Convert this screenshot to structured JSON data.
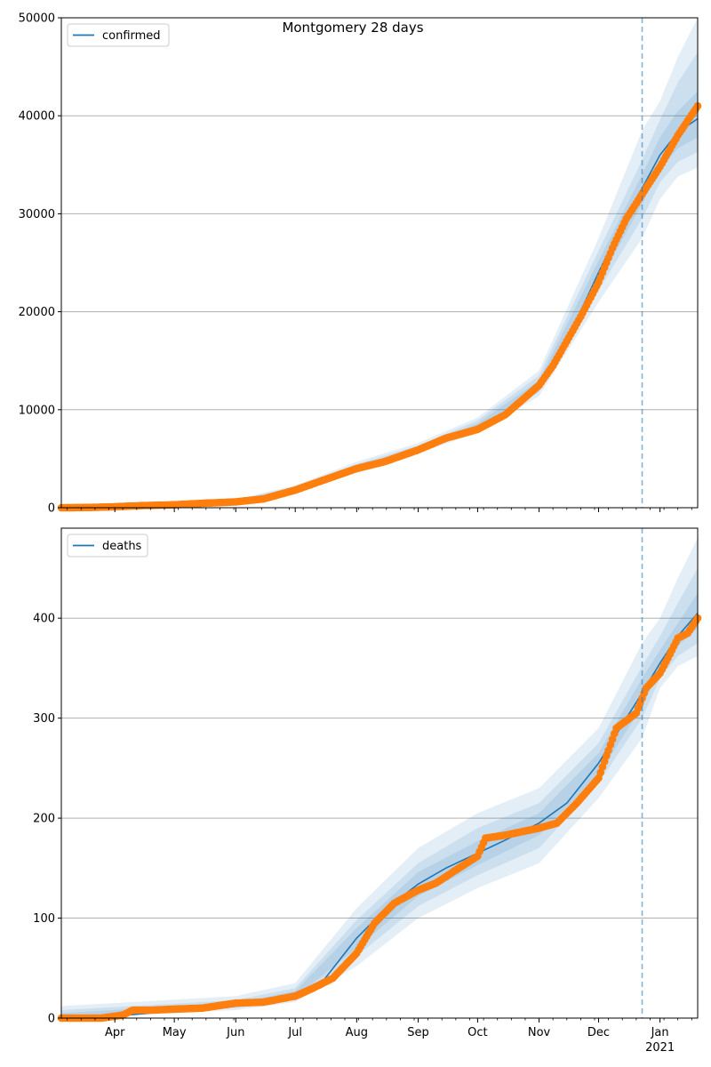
{
  "figure": {
    "title": "Montgomery 28 days",
    "colors": {
      "model_line": "#1f77b4",
      "observed": "#ff7f0e",
      "band": "#1f77b4",
      "grid": "#b0b0b0",
      "vline": "#1f77b4"
    }
  },
  "chart_data": [
    {
      "type": "line",
      "name": "confirmed-panel",
      "x_range": [
        "2020-03-05",
        "2021-01-20"
      ],
      "ylim": [
        0,
        50000
      ],
      "yticks": [
        0,
        10000,
        20000,
        30000,
        40000,
        50000
      ],
      "ytick_labels": [
        "0",
        "10000",
        "20000",
        "30000",
        "40000",
        "50000"
      ],
      "grid": "y",
      "legend": {
        "placement": "top-left",
        "entries": [
          "confirmed"
        ]
      },
      "forecast_start": "2020-12-23",
      "model": {
        "name": "confirmed",
        "x": [
          "2020-03-05",
          "2020-04-01",
          "2020-05-01",
          "2020-06-01",
          "2020-06-15",
          "2020-07-01",
          "2020-07-15",
          "2020-08-01",
          "2020-08-15",
          "2020-09-01",
          "2020-09-15",
          "2020-10-01",
          "2020-10-15",
          "2020-11-01",
          "2020-11-15",
          "2020-12-01",
          "2020-12-15",
          "2020-12-23",
          "2021-01-01",
          "2021-01-10",
          "2021-01-20"
        ],
        "y": [
          0,
          100,
          250,
          650,
          1000,
          1900,
          2900,
          4100,
          4800,
          6000,
          7300,
          8300,
          9600,
          12500,
          17000,
          24000,
          29800,
          32600,
          36000,
          38300,
          39700
        ]
      },
      "bands": [
        {
          "x": [
            "2020-03-05",
            "2020-06-01",
            "2020-07-01",
            "2020-08-01",
            "2020-09-01",
            "2020-10-01",
            "2020-11-01",
            "2020-12-01",
            "2020-12-23",
            "2021-01-01",
            "2021-01-10",
            "2021-01-20"
          ],
          "lower": [
            0,
            450,
            1600,
            3600,
            5600,
            7600,
            11400,
            21000,
            27500,
            31500,
            33800,
            34700
          ],
          "upper": [
            0,
            850,
            2300,
            4700,
            6600,
            9200,
            14000,
            27500,
            38500,
            41500,
            46000,
            50000
          ]
        },
        {
          "x": [
            "2020-03-05",
            "2020-06-01",
            "2020-07-01",
            "2020-08-01",
            "2020-09-01",
            "2020-10-01",
            "2020-11-01",
            "2020-12-01",
            "2020-12-23",
            "2021-01-01",
            "2021-01-10",
            "2021-01-20"
          ],
          "lower": [
            0,
            520,
            1700,
            3800,
            5750,
            7800,
            11800,
            22200,
            29500,
            33200,
            35300,
            36300
          ],
          "upper": [
            0,
            780,
            2150,
            4450,
            6350,
            8900,
            13500,
            26200,
            35500,
            39600,
            43400,
            46500
          ]
        },
        {
          "x": [
            "2020-03-05",
            "2020-06-01",
            "2020-07-01",
            "2020-08-01",
            "2020-09-01",
            "2020-10-01",
            "2020-11-01",
            "2020-12-01",
            "2020-12-23",
            "2021-01-01",
            "2021-01-10",
            "2021-01-20"
          ],
          "lower": [
            0,
            580,
            1800,
            3950,
            5850,
            8000,
            12100,
            23000,
            31000,
            34600,
            36700,
            37800
          ],
          "upper": [
            0,
            720,
            2000,
            4250,
            6150,
            8600,
            13000,
            25200,
            34000,
            37800,
            40500,
            42500
          ]
        }
      ],
      "observed": {
        "x": [
          "2020-03-05",
          "2020-03-20",
          "2020-04-01",
          "2020-04-15",
          "2020-05-01",
          "2020-05-15",
          "2020-06-01",
          "2020-06-15",
          "2020-07-01",
          "2020-07-15",
          "2020-08-01",
          "2020-08-15",
          "2020-09-01",
          "2020-09-15",
          "2020-10-01",
          "2020-10-15",
          "2020-11-01",
          "2020-11-08",
          "2020-11-15",
          "2020-11-22",
          "2020-12-01",
          "2020-12-08",
          "2020-12-15",
          "2020-12-23",
          "2021-01-01",
          "2021-01-10",
          "2021-01-20"
        ],
        "y": [
          0,
          30,
          100,
          220,
          300,
          450,
          600,
          900,
          1800,
          2800,
          4000,
          4700,
          5900,
          7100,
          8000,
          9500,
          12500,
          14500,
          17000,
          19500,
          23000,
          26500,
          29500,
          32000,
          34800,
          38000,
          41000
        ]
      }
    },
    {
      "type": "line",
      "name": "deaths-panel",
      "x_range": [
        "2020-03-05",
        "2021-01-20"
      ],
      "ylim": [
        0,
        490
      ],
      "yticks": [
        0,
        100,
        200,
        300,
        400
      ],
      "ytick_labels": [
        "0",
        "100",
        "200",
        "300",
        "400"
      ],
      "grid": "y",
      "legend": {
        "placement": "top-left",
        "entries": [
          "deaths"
        ]
      },
      "forecast_start": "2020-12-23",
      "xticks": [
        {
          "date": "2020-04-01",
          "label": "Apr"
        },
        {
          "date": "2020-05-01",
          "label": "May"
        },
        {
          "date": "2020-06-01",
          "label": "Jun"
        },
        {
          "date": "2020-07-01",
          "label": "Jul"
        },
        {
          "date": "2020-08-01",
          "label": "Aug"
        },
        {
          "date": "2020-09-01",
          "label": "Sep"
        },
        {
          "date": "2020-10-01",
          "label": "Oct"
        },
        {
          "date": "2020-11-01",
          "label": "Nov"
        },
        {
          "date": "2020-12-01",
          "label": "Dec"
        },
        {
          "date": "2021-01-01",
          "label": "Jan"
        }
      ],
      "xtick_year_label": "2021",
      "model": {
        "name": "deaths",
        "x": [
          "2020-03-05",
          "2020-04-01",
          "2020-05-01",
          "2020-06-01",
          "2020-06-15",
          "2020-07-01",
          "2020-07-15",
          "2020-08-01",
          "2020-08-15",
          "2020-09-01",
          "2020-09-15",
          "2020-10-01",
          "2020-10-15",
          "2020-11-01",
          "2020-11-15",
          "2020-12-01",
          "2020-12-15",
          "2020-12-23",
          "2021-01-01",
          "2021-01-10",
          "2021-01-20"
        ],
        "y": [
          0,
          2,
          7,
          13,
          17,
          24,
          37,
          80,
          108,
          134,
          150,
          165,
          178,
          195,
          215,
          255,
          300,
          325,
          355,
          382,
          405
        ]
      },
      "bands": [
        {
          "x": [
            "2020-03-05",
            "2020-06-01",
            "2020-07-01",
            "2020-08-01",
            "2020-09-01",
            "2020-10-01",
            "2020-11-01",
            "2020-12-01",
            "2020-12-23",
            "2021-01-01",
            "2021-01-10",
            "2021-01-20"
          ],
          "lower": [
            0,
            8,
            16,
            52,
            100,
            130,
            155,
            220,
            280,
            330,
            352,
            362
          ],
          "upper": [
            12,
            22,
            35,
            110,
            170,
            205,
            230,
            290,
            375,
            400,
            440,
            480
          ]
        },
        {
          "x": [
            "2020-03-05",
            "2020-06-01",
            "2020-07-01",
            "2020-08-01",
            "2020-09-01",
            "2020-10-01",
            "2020-11-01",
            "2020-12-01",
            "2020-12-23",
            "2021-01-01",
            "2021-01-10",
            "2021-01-20"
          ],
          "lower": [
            0,
            10,
            19,
            62,
            112,
            143,
            170,
            235,
            300,
            340,
            362,
            375
          ],
          "upper": [
            8,
            18,
            30,
            98,
            155,
            190,
            215,
            275,
            352,
            382,
            415,
            450
          ]
        },
        {
          "x": [
            "2020-03-05",
            "2020-06-01",
            "2020-07-01",
            "2020-08-01",
            "2020-09-01",
            "2020-10-01",
            "2020-11-01",
            "2020-12-01",
            "2020-12-23",
            "2021-01-01",
            "2021-01-10",
            "2021-01-20"
          ],
          "lower": [
            0,
            11,
            21,
            70,
            122,
            153,
            183,
            243,
            312,
            348,
            372,
            390
          ],
          "upper": [
            5,
            15,
            27,
            90,
            146,
            177,
            205,
            265,
            340,
            368,
            395,
            425
          ]
        }
      ],
      "observed": {
        "x": [
          "2020-03-05",
          "2020-03-25",
          "2020-04-05",
          "2020-04-10",
          "2020-04-20",
          "2020-05-01",
          "2020-05-15",
          "2020-06-01",
          "2020-06-15",
          "2020-07-01",
          "2020-07-10",
          "2020-07-20",
          "2020-08-01",
          "2020-08-10",
          "2020-08-20",
          "2020-09-01",
          "2020-09-10",
          "2020-09-20",
          "2020-10-01",
          "2020-10-05",
          "2020-10-15",
          "2020-11-01",
          "2020-11-10",
          "2020-11-20",
          "2020-12-01",
          "2020-12-10",
          "2020-12-20",
          "2020-12-25",
          "2021-01-01",
          "2021-01-05",
          "2021-01-10",
          "2021-01-15",
          "2021-01-20"
        ],
        "y": [
          0,
          0,
          3,
          8,
          8,
          9,
          10,
          15,
          16,
          22,
          30,
          40,
          65,
          95,
          115,
          128,
          135,
          148,
          162,
          180,
          183,
          190,
          195,
          215,
          240,
          290,
          305,
          330,
          345,
          360,
          380,
          385,
          400
        ]
      }
    }
  ]
}
